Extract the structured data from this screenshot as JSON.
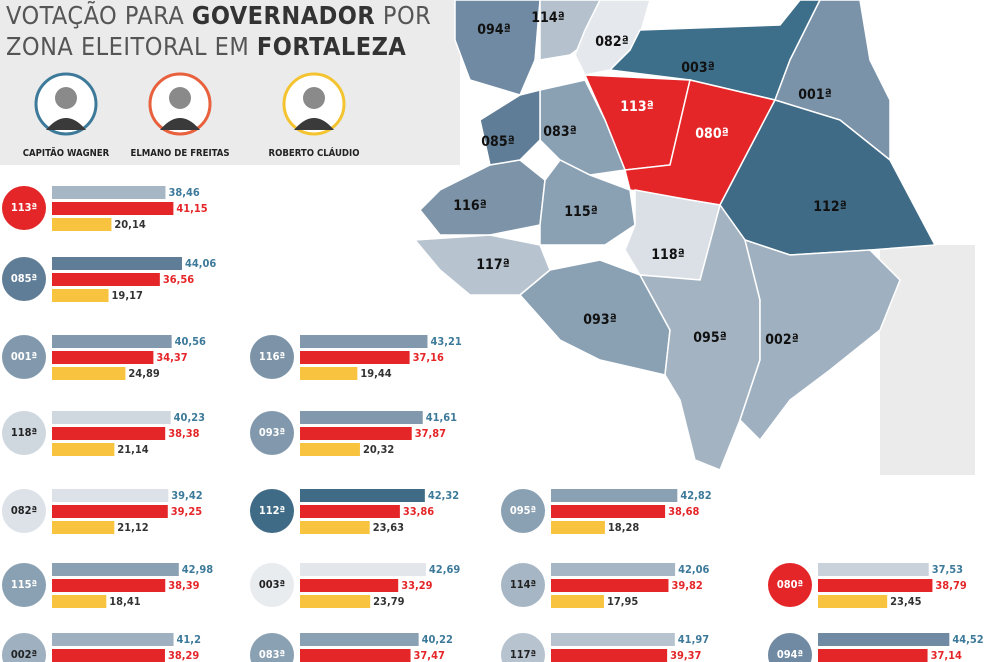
{
  "header": {
    "line1": {
      "regular": "VOTAÇÃO PARA",
      "bold": "GOVERNADOR",
      "end": "POR"
    },
    "line2": {
      "regular": "ZONA ELEITORAL EM",
      "bold": "FORTALEZA"
    }
  },
  "candidates": [
    {
      "name": "CAPITÃO WAGNER",
      "color": "#3d7a9a"
    },
    {
      "name": "ELMANO DE FREITAS",
      "color": "#e8603c"
    },
    {
      "name": "ROBERTO CLÁUDIO",
      "color": "#f4c430"
    }
  ],
  "zones": [
    {
      "label": "113ª",
      "color": "#e52629",
      "bar_color": "#a7b6c4",
      "values": [
        38.46,
        41.15,
        20.14
      ],
      "value_labels": [
        "38,46",
        "41,15",
        "20,14"
      ]
    },
    {
      "label": "085ª",
      "color": "#5f7d96",
      "bar_color": "#5f7d96",
      "values": [
        44.06,
        36.56,
        19.17
      ],
      "value_labels": [
        "44,06",
        "36,56",
        "19,17"
      ]
    },
    {
      "label": "001ª",
      "color": "#8299ad",
      "bar_color": "#8299ad",
      "values": [
        40.56,
        34.37,
        24.89
      ],
      "value_labels": [
        "40,56",
        "34,37",
        "24,89"
      ]
    },
    {
      "label": "116ª",
      "color": "#7d94a8",
      "bar_color": "#8299ad",
      "values": [
        43.21,
        37.16,
        19.44
      ],
      "value_labels": [
        "43,21",
        "37,16",
        "19,44"
      ]
    },
    {
      "label": "118ª",
      "color": "#cfd7df",
      "bar_color": "#cfd7df",
      "values": [
        40.23,
        38.38,
        21.14
      ],
      "value_labels": [
        "40,23",
        "38,38",
        "21,14"
      ]
    },
    {
      "label": "093ª",
      "color": "#8299ad",
      "bar_color": "#8299ad",
      "values": [
        41.61,
        37.87,
        20.32
      ],
      "value_labels": [
        "41,61",
        "37,87",
        "20,32"
      ]
    },
    {
      "label": "082ª",
      "color": "#dde2e8",
      "bar_color": "#dde2e8",
      "values": [
        39.42,
        39.25,
        21.12
      ],
      "value_labels": [
        "39,42",
        "39,25",
        "21,12"
      ]
    },
    {
      "label": "112ª",
      "color": "#3f6b86",
      "bar_color": "#3f6b86",
      "values": [
        42.32,
        33.86,
        23.63
      ],
      "value_labels": [
        "42,32",
        "33,86",
        "23,63"
      ]
    },
    {
      "label": "095ª",
      "color": "#8aa0b3",
      "bar_color": "#8aa0b3",
      "values": [
        42.82,
        38.68,
        18.28
      ],
      "value_labels": [
        "42,82",
        "38,68",
        "18,28"
      ]
    },
    {
      "label": "115ª",
      "color": "#8aa0b3",
      "bar_color": "#8aa0b3",
      "values": [
        42.98,
        38.39,
        18.41
      ],
      "value_labels": [
        "42,98",
        "38,39",
        "18,41"
      ]
    },
    {
      "label": "003ª",
      "color": "#e9ecef",
      "bar_color": "#e3e7eb",
      "values": [
        42.69,
        33.29,
        23.79
      ],
      "value_labels": [
        "42,69",
        "33,29",
        "23,79"
      ]
    },
    {
      "label": "114ª",
      "color": "#a7b6c4",
      "bar_color": "#a7b6c4",
      "values": [
        42.06,
        39.82,
        17.95
      ],
      "value_labels": [
        "42,06",
        "39,82",
        "17,95"
      ]
    },
    {
      "label": "080ª",
      "color": "#e52629",
      "bar_color": "#c9d2db",
      "values": [
        37.53,
        38.79,
        23.45
      ],
      "value_labels": [
        "37,53",
        "38,79",
        "23,45"
      ]
    },
    {
      "label": "002ª",
      "color": "#9fb0c0",
      "bar_color": "#9fb0c0",
      "values": [
        41.2,
        38.29
      ],
      "value_labels": [
        "41,2",
        "38,29"
      ]
    },
    {
      "label": "083ª",
      "color": "#8aa0b3",
      "bar_color": "#8aa0b3",
      "values": [
        40.22,
        37.47
      ],
      "value_labels": [
        "40,22",
        "37,47"
      ]
    },
    {
      "label": "117ª",
      "color": "#b7c3cf",
      "bar_color": "#b7c3cf",
      "values": [
        41.97,
        39.37
      ],
      "value_labels": [
        "41,97",
        "39,37"
      ]
    },
    {
      "label": "094ª",
      "color": "#6f8aa2",
      "bar_color": "#6f8aa2",
      "values": [
        44.52,
        37.14
      ],
      "value_labels": [
        "44,52",
        "37,14"
      ]
    }
  ],
  "map": {
    "regions": [
      {
        "label": "094ª"
      },
      {
        "label": "114ª"
      },
      {
        "label": "082ª"
      },
      {
        "label": "003ª"
      },
      {
        "label": "001ª"
      },
      {
        "label": "113ª"
      },
      {
        "label": "080ª"
      },
      {
        "label": "112ª"
      },
      {
        "label": "083ª"
      },
      {
        "label": "085ª"
      },
      {
        "label": "116ª"
      },
      {
        "label": "115ª"
      },
      {
        "label": "118ª"
      },
      {
        "label": "117ª"
      },
      {
        "label": "093ª"
      },
      {
        "label": "095ª"
      },
      {
        "label": "002ª"
      }
    ]
  }
}
